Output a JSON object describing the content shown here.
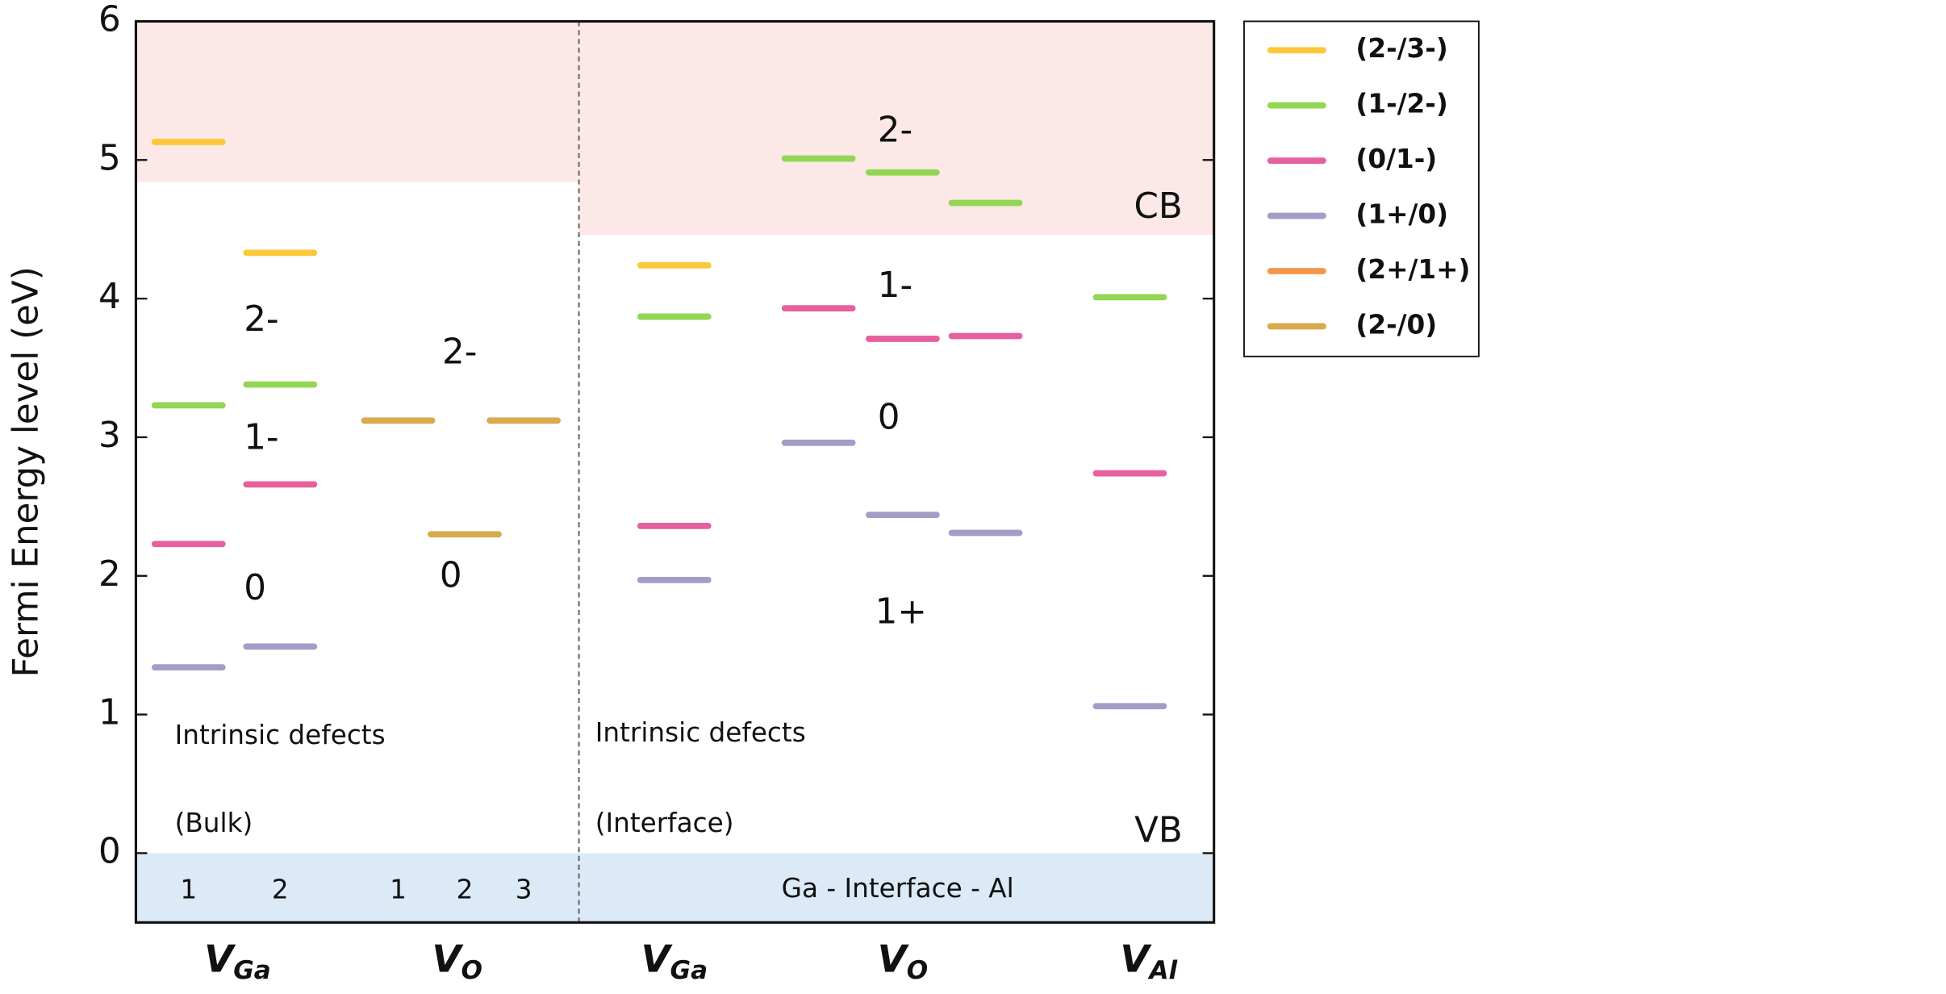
{
  "chart_data": {
    "type": "levels",
    "ylabel": "Fermi Energy level (eV)",
    "ylim": [
      -0.5,
      6
    ],
    "yticks": [
      0,
      1,
      2,
      3,
      4,
      5,
      6
    ],
    "cb_bulk": 4.84,
    "cb_interface": 4.46,
    "vb": 0,
    "cb_color": "#fce8e6",
    "vb_color": "#dbeaf6",
    "categories": [
      "1",
      "2",
      "1",
      "2",
      "3",
      null,
      null,
      null,
      null,
      null
    ],
    "groups": [
      {
        "main": "V",
        "sub": "Ga"
      },
      {
        "main": "V",
        "sub": "O"
      },
      {
        "main": "V",
        "sub": "Ga"
      },
      {
        "main": "V",
        "sub": "O"
      },
      {
        "main": "V",
        "sub": "Al"
      }
    ],
    "series": [
      {
        "name": "(2-/3-)",
        "color": "#fcc83a",
        "values": [
          5.13,
          4.33,
          null,
          null,
          null,
          4.24,
          null,
          null,
          null,
          null
        ]
      },
      {
        "name": "(1-/2-)",
        "color": "#93d653",
        "values": [
          3.23,
          3.38,
          null,
          null,
          null,
          3.87,
          5.01,
          4.91,
          4.69,
          4.01
        ]
      },
      {
        "name": "(0/1-)",
        "color": "#e6609e",
        "values": [
          2.23,
          2.66,
          null,
          null,
          null,
          2.36,
          3.93,
          3.71,
          3.73,
          2.74
        ]
      },
      {
        "name": "(1+/0)",
        "color": "#a39dc8",
        "values": [
          1.34,
          1.49,
          null,
          null,
          null,
          1.97,
          2.96,
          2.44,
          2.31,
          1.06
        ]
      },
      {
        "name": "(2+/1+)",
        "color": "#f5954a",
        "values": [
          null,
          null,
          null,
          null,
          null,
          null,
          null,
          null,
          null,
          null
        ]
      },
      {
        "name": "(2-/0)",
        "color": "#d9aa4e",
        "values": [
          null,
          null,
          3.12,
          2.3,
          3.12,
          null,
          null,
          null,
          null,
          null
        ]
      }
    ],
    "annotations": [
      "2-",
      "1-",
      "0",
      "2-",
      "0",
      "2-",
      "1-",
      "0",
      "1+",
      "CB",
      "VB",
      "Intrinsic defects",
      "(Bulk)",
      "Intrinsic defects",
      "(Interface)",
      "Ga - Interface - Al"
    ]
  }
}
